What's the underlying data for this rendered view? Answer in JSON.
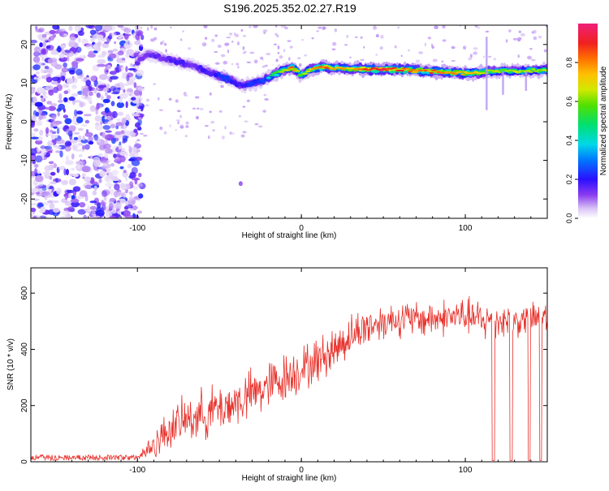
{
  "title": "S196.2025.352.02.27.R19",
  "chart_data": [
    {
      "type": "heatmap",
      "panel": "spectrogram",
      "xlabel": "Height of straight line (km)",
      "ylabel": "Frequency (Hz)",
      "xlim": [
        -165,
        150
      ],
      "ylim": [
        -25,
        25
      ],
      "xticks": [
        "-100",
        "0",
        "100"
      ],
      "yticks": [
        "-20",
        "-10",
        "0",
        "10",
        "20"
      ],
      "colorbar": {
        "label": "Normalized spectral amplitude",
        "range": [
          0,
          1
        ],
        "ticks": [
          "0.0",
          "0.2",
          "0.4",
          "0.6",
          "0.8"
        ]
      },
      "ridge": {
        "x": [
          -100,
          -95,
          -90,
          -85,
          -80,
          -75,
          -70,
          -65,
          -60,
          -55,
          -50,
          -45,
          -40,
          -35,
          -30,
          -25,
          -20,
          -15,
          -10,
          -5,
          0,
          5,
          10,
          15,
          20,
          30,
          40,
          50,
          60,
          70,
          80,
          90,
          100,
          110,
          120,
          130,
          140,
          150
        ],
        "y": [
          15.5,
          17.5,
          17.2,
          16.5,
          16.0,
          15.5,
          15.0,
          14.5,
          13.5,
          12.5,
          12.0,
          11.0,
          10.0,
          9.5,
          9.8,
          10.5,
          11.5,
          12.5,
          13.5,
          14.0,
          12.0,
          13.5,
          14.0,
          14.2,
          14.0,
          13.8,
          13.6,
          13.5,
          13.5,
          13.3,
          13.0,
          12.8,
          12.5,
          12.8,
          13.2,
          13.0,
          13.2,
          13.4
        ],
        "amplitude": [
          0.3,
          0.3,
          0.35,
          0.3,
          0.35,
          0.4,
          0.35,
          0.3,
          0.4,
          0.35,
          0.5,
          0.5,
          0.4,
          0.4,
          0.5,
          0.5,
          0.55,
          0.6,
          0.7,
          0.9,
          0.6,
          0.75,
          0.85,
          0.95,
          0.8,
          0.8,
          0.95,
          1.0,
          0.95,
          0.85,
          0.9,
          0.85,
          0.8,
          0.75,
          0.7,
          0.7,
          0.7,
          0.7
        ]
      }
    },
    {
      "type": "line",
      "panel": "snr",
      "xlabel": "Height of straight line (km)",
      "ylabel": "SNR (10 * v/v)",
      "xlim": [
        -165,
        150
      ],
      "ylim": [
        0,
        690
      ],
      "xticks": [
        "-100",
        "0",
        "100"
      ],
      "yticks": [
        "0",
        "200",
        "400",
        "600"
      ],
      "series": [
        {
          "name": "SNR",
          "color": "#e8302a",
          "envelope": {
            "x": [
              -165,
              -100,
              -90,
              -80,
              -70,
              -60,
              -50,
              -40,
              -30,
              -20,
              -10,
              0,
              10,
              20,
              30,
              40,
              50,
              60,
              70,
              80,
              90,
              100,
              110,
              120,
              130,
              140,
              150
            ],
            "mean": [
              15,
              15,
              60,
              120,
              150,
              170,
              190,
              210,
              240,
              270,
              300,
              330,
              360,
              400,
              450,
              480,
              500,
              510,
              505,
              510,
              515,
              520,
              500,
              505,
              500,
              505,
              520
            ],
            "spread": [
              10,
              10,
              70,
              90,
              100,
              110,
              110,
              110,
              110,
              110,
              110,
              100,
              100,
              100,
              90,
              90,
              80,
              80,
              80,
              80,
              80,
              80,
              90,
              80,
              70,
              70,
              70
            ]
          },
          "dropouts_x": [
            117,
            128,
            139,
            146
          ]
        }
      ]
    }
  ]
}
